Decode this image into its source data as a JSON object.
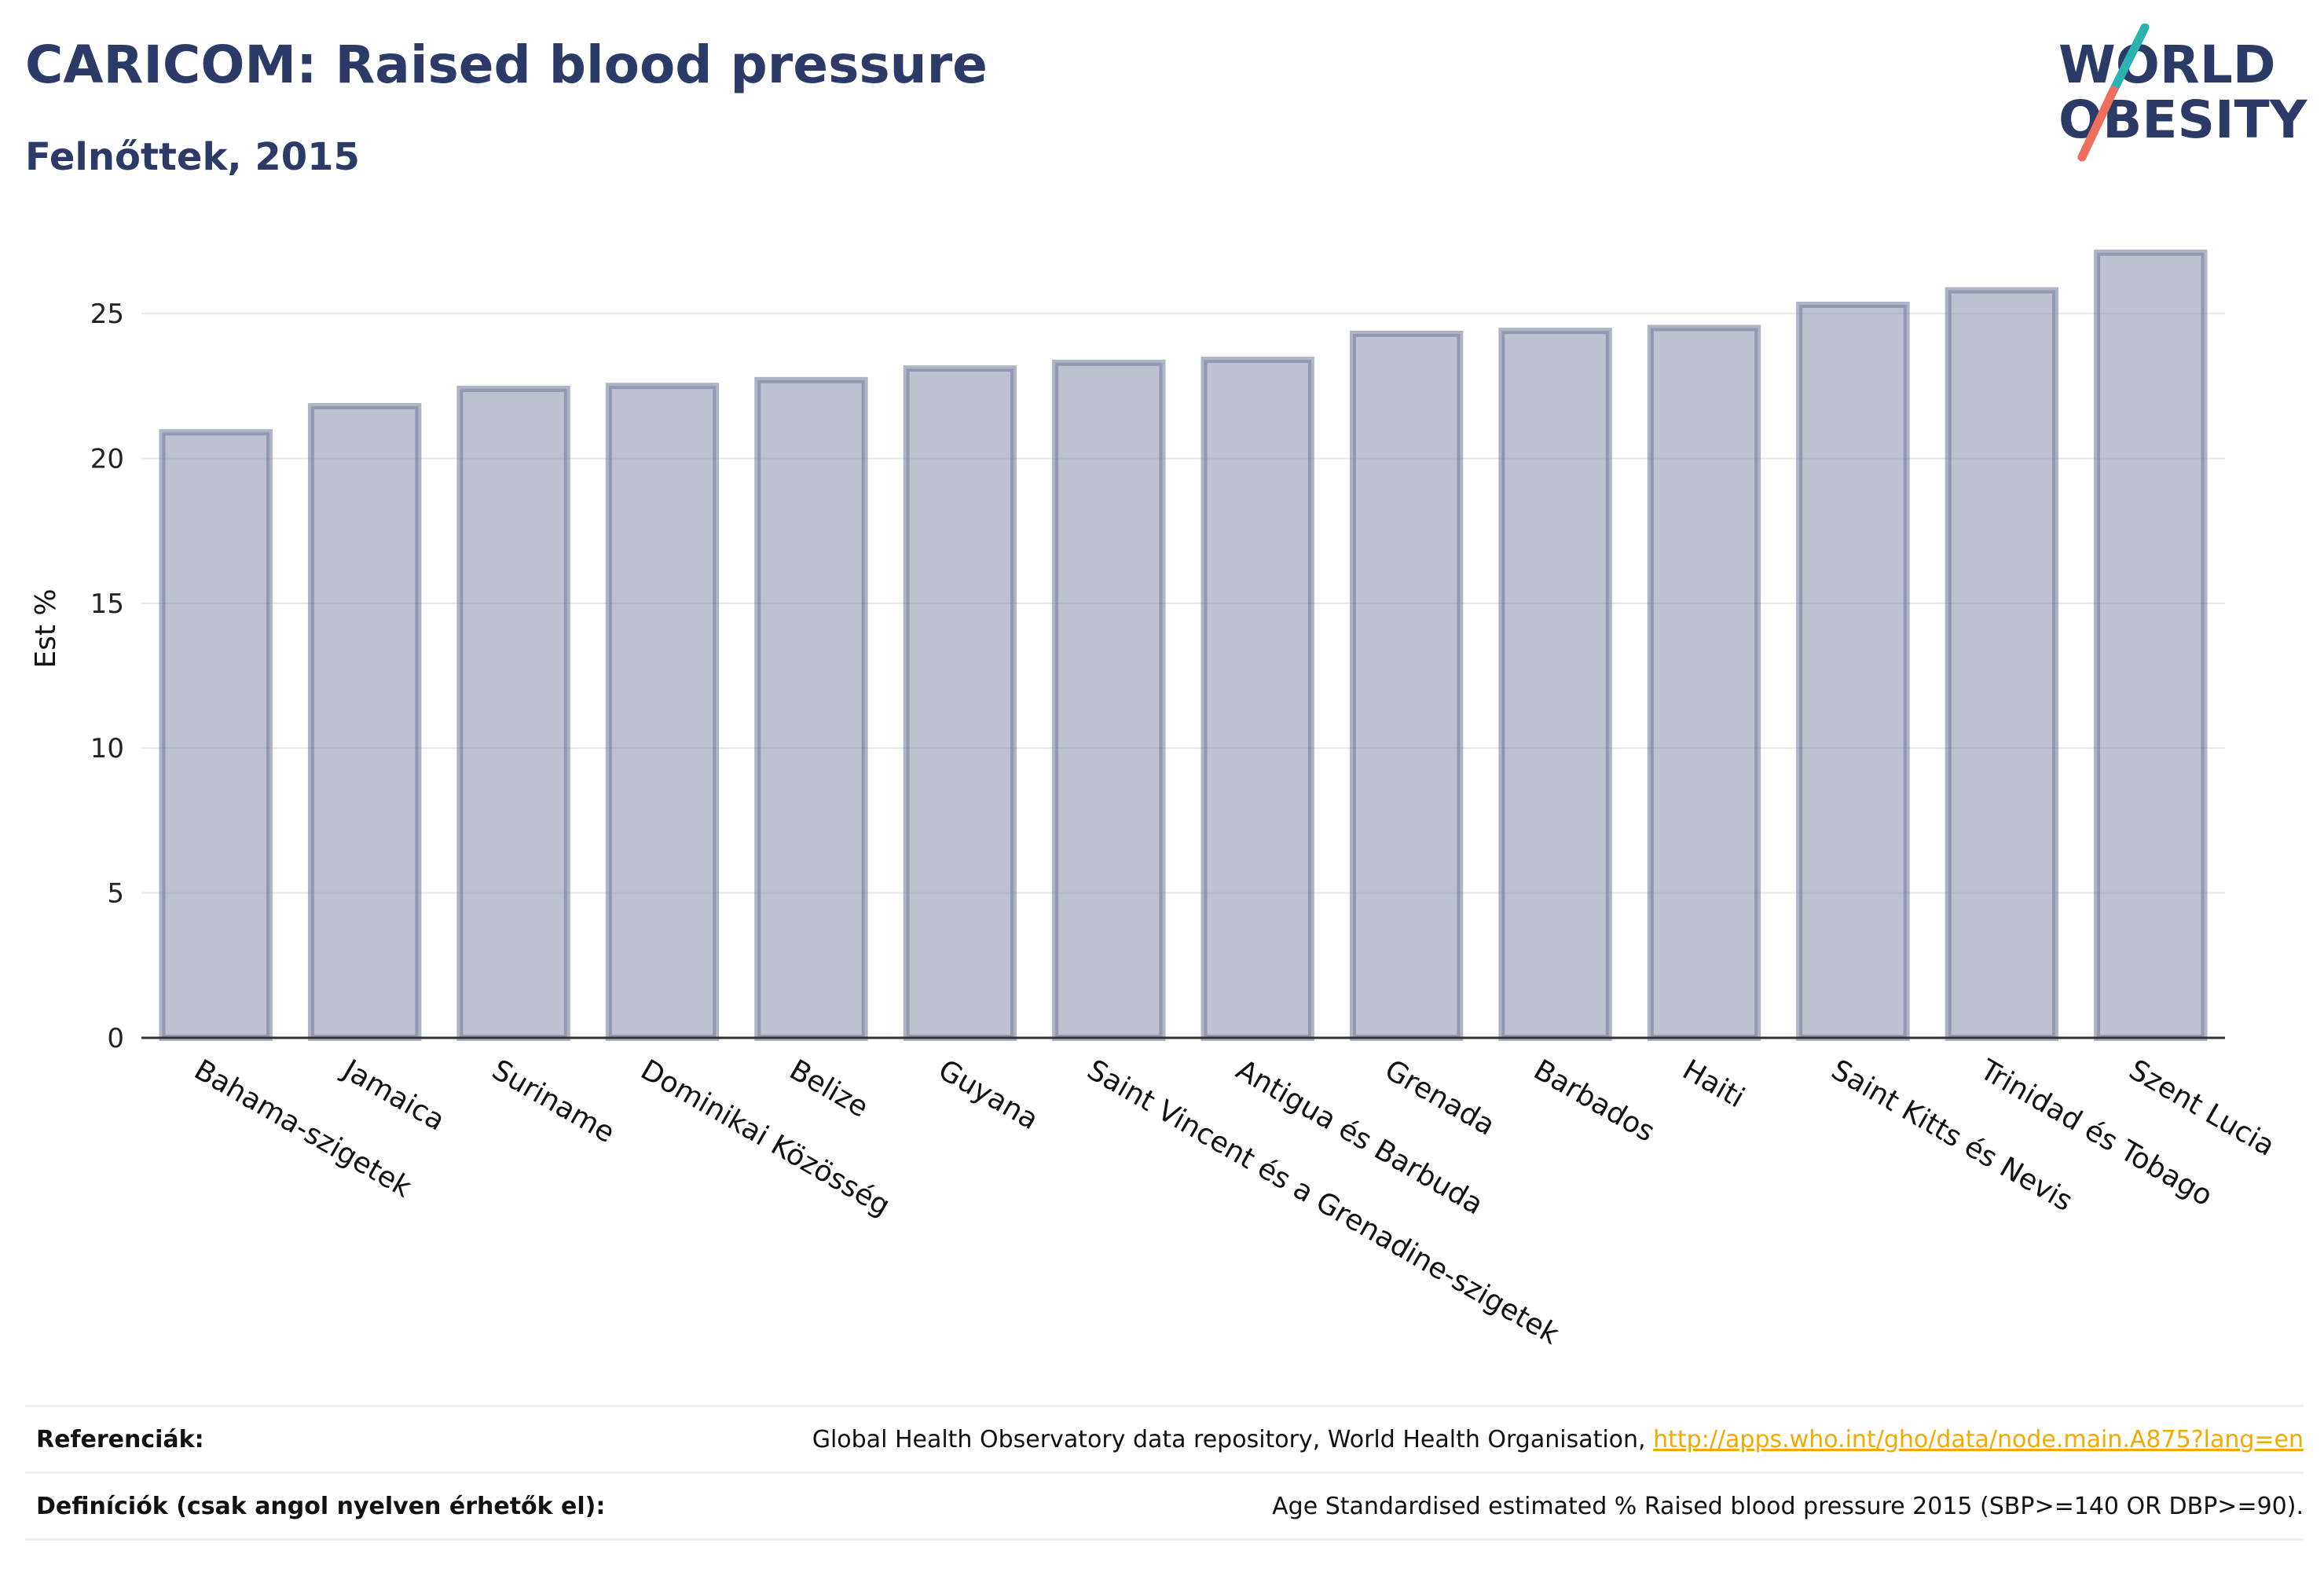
{
  "header": {
    "title": "CARICOM: Raised blood pressure",
    "subtitle": "Felnőttek, 2015"
  },
  "logo": {
    "text_line1": "WORLD",
    "text_line2": "OBESITY",
    "color_text": "#2b3a67",
    "color_slash_top": "#2ab3b1",
    "color_slash_bottom": "#ef6f5c"
  },
  "chart_data": {
    "type": "bar",
    "categories": [
      "Bahama-szigetek",
      "Jamaica",
      "Suriname",
      "Dominikai Közösség",
      "Belize",
      "Guyana",
      "Saint Vincent és a Grenadine-szigetek",
      "Antigua és Barbuda",
      "Grenada",
      "Barbados",
      "Haiti",
      "Saint Kitts és Nevis",
      "Trinidad és Tobago",
      "Szent Lucia"
    ],
    "values": [
      20.9,
      21.8,
      22.4,
      22.5,
      22.7,
      23.1,
      23.3,
      23.4,
      24.3,
      24.4,
      24.5,
      25.3,
      25.8,
      27.1
    ],
    "title": "CARICOM: Raised blood pressure",
    "subtitle": "Felnőttek, 2015",
    "xlabel": "",
    "ylabel": "Est %",
    "ylim": [
      0,
      28.5
    ],
    "yticks": [
      0,
      5,
      10,
      15,
      20,
      25
    ],
    "grid": true,
    "bar_color": "#8a91aa"
  },
  "footer": {
    "references_label": "Referenciák:",
    "references_text": "Global Health Observatory data repository, World Health Organisation,",
    "references_link": "http://apps.who.int/gho/data/node.main.A875?lang=en",
    "definitions_label": "Definíciók (csak angol nyelven érhetők el):",
    "definitions_text": "Age Standardised estimated % Raised blood pressure 2015 (SBP>=140 OR DBP>=90)."
  }
}
